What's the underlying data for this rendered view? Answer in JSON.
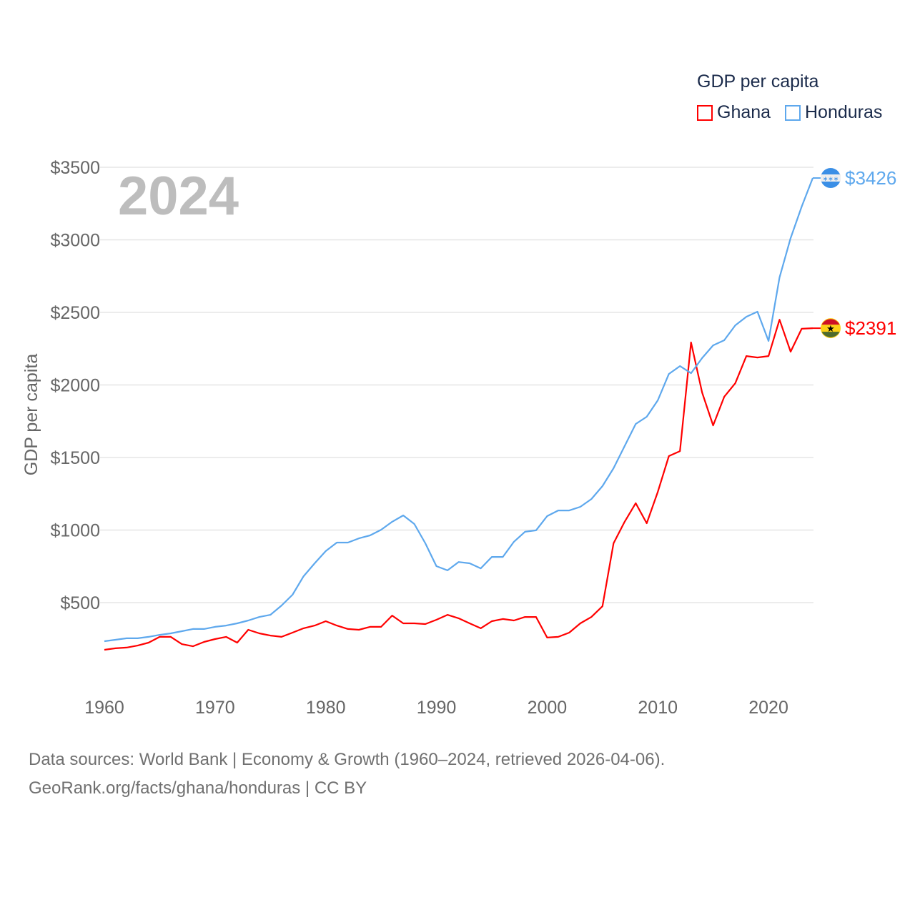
{
  "chart_data": {
    "type": "line",
    "title": "GDP per capita",
    "year_label": "2024",
    "ylabel": "GDP per capita",
    "xlabel": "",
    "ylim": [
      0,
      3500
    ],
    "xlim": [
      1960,
      2024
    ],
    "x_ticks": [
      "1960",
      "1970",
      "1980",
      "1990",
      "2000",
      "2010",
      "2020"
    ],
    "y_ticks": [
      {
        "value": 500,
        "label": "$500"
      },
      {
        "value": 1000,
        "label": "$1000"
      },
      {
        "value": 1500,
        "label": "$1500"
      },
      {
        "value": 2000,
        "label": "$2000"
      },
      {
        "value": 2500,
        "label": "$2500"
      },
      {
        "value": 3000,
        "label": "$3000"
      },
      {
        "value": 3500,
        "label": "$3500"
      }
    ],
    "grid": true,
    "legend_position": "top-right",
    "x": [
      1960,
      1961,
      1962,
      1963,
      1964,
      1965,
      1966,
      1967,
      1968,
      1969,
      1970,
      1971,
      1972,
      1973,
      1974,
      1975,
      1976,
      1977,
      1978,
      1979,
      1980,
      1981,
      1982,
      1983,
      1984,
      1985,
      1986,
      1987,
      1988,
      1989,
      1990,
      1991,
      1992,
      1993,
      1994,
      1995,
      1996,
      1997,
      1998,
      1999,
      2000,
      2001,
      2002,
      2003,
      2004,
      2005,
      2006,
      2007,
      2008,
      2009,
      2010,
      2011,
      2012,
      2013,
      2014,
      2015,
      2016,
      2017,
      2018,
      2019,
      2020,
      2021,
      2022,
      2023,
      2024
    ],
    "series": [
      {
        "name": "Ghana",
        "color": "#ff0000",
        "end_label": "$2391",
        "values": [
          175,
          185,
          190,
          204,
          224,
          264,
          264,
          214,
          199,
          229,
          249,
          264,
          224,
          313,
          288,
          273,
          264,
          293,
          323,
          342,
          372,
          342,
          318,
          313,
          333,
          333,
          411,
          357,
          357,
          352,
          382,
          416,
          392,
          357,
          323,
          372,
          387,
          377,
          401,
          401,
          259,
          264,
          293,
          357,
          401,
          475,
          909,
          1057,
          1185,
          1047,
          1263,
          1510,
          1544,
          2293,
          1948,
          1721,
          1918,
          2012,
          2199,
          2189,
          2199,
          2450,
          2229,
          2387,
          2391
        ]
      },
      {
        "name": "Honduras",
        "color": "#5ea8ed",
        "end_label": "$3426",
        "values": [
          234,
          244,
          254,
          254,
          264,
          278,
          288,
          303,
          318,
          318,
          333,
          342,
          357,
          377,
          401,
          416,
          480,
          554,
          682,
          771,
          855,
          914,
          914,
          943,
          963,
          1002,
          1057,
          1101,
          1042,
          909,
          751,
          722,
          780,
          771,
          736,
          815,
          815,
          919,
          988,
          998,
          1096,
          1135,
          1135,
          1160,
          1214,
          1303,
          1426,
          1579,
          1731,
          1781,
          1894,
          2076,
          2130,
          2081,
          2185,
          2273,
          2308,
          2411,
          2470,
          2505,
          2303,
          2741,
          3012,
          3229,
          3426
        ]
      }
    ]
  },
  "footer": {
    "line1": "Data sources: World Bank | Economy & Growth (1960–2024, retrieved 2026-04-06).",
    "line2": "GeoRank.org/facts/ghana/honduras | CC BY"
  }
}
